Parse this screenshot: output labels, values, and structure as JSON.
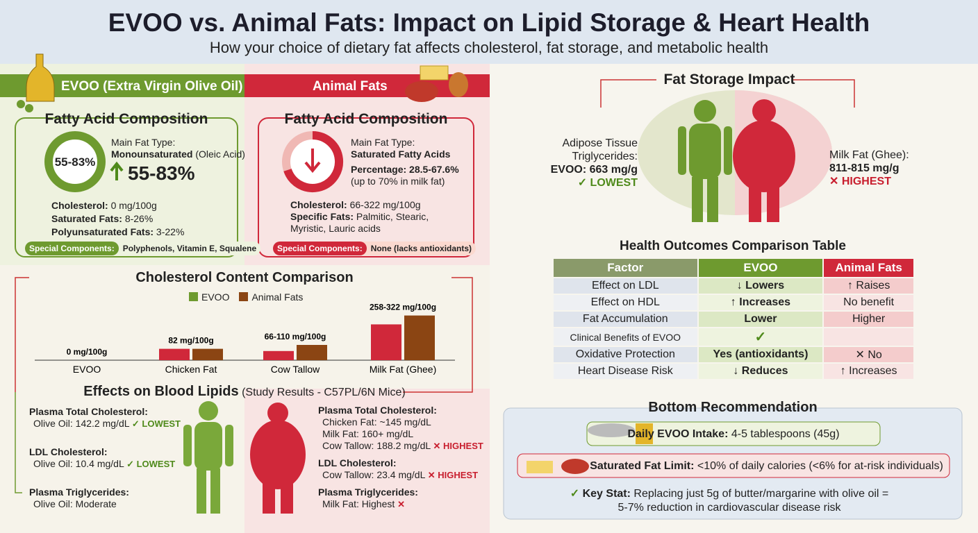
{
  "header": {
    "title": "EVOO vs. Animal Fats: Impact on Lipid Storage & Heart Health",
    "subtitle": "How your choice of dietary fat affects cholesterol, fat storage, and metabolic health"
  },
  "evoo": {
    "banner": "EVOO (Extra Virgin Olive Oil)",
    "heading": "Fatty Acid Composition",
    "ring_label": "55-83%",
    "main_type_label": "Main Fat Type:",
    "main_type": "Monounsaturated",
    "main_type_note": "(Oleic Acid)",
    "big_stat": "55-83%",
    "facts": [
      {
        "label": "Cholesterol:",
        "value": "0 mg/100g"
      },
      {
        "label": "Saturated Fats:",
        "value": "8-26%"
      },
      {
        "label": "Polyunsaturated Fats:",
        "value": "3-22%"
      }
    ],
    "special_label": "Special Components:",
    "special_value": "Polyphenols, Vitamin E, Squalene"
  },
  "animal": {
    "banner": "Animal Fats",
    "heading": "Fatty Acid Composition",
    "main_type_label": "Main Fat Type:",
    "main_type": "Saturated Fatty Acids",
    "percentage_label": "Percentage:",
    "percentage": "28.5-67.6%",
    "percentage_note": "(up to 70% in milk fat)",
    "facts": [
      {
        "label": "Cholesterol:",
        "value": "66-322 mg/100g"
      },
      {
        "label": "Specific Fats:",
        "value": "Palmitic, Stearic, Myristic, Lauric acids"
      }
    ],
    "special_label": "Special Components:",
    "special_value": "None (lacks antioxidants)"
  },
  "cholesterol_chart": {
    "title": "Cholesterol Content Comparison",
    "legend": [
      {
        "name": "EVOO",
        "color": "#6e9a2f"
      },
      {
        "name": "Animal Fats",
        "color": "#8b4513"
      }
    ],
    "categories": [
      "EVOO",
      "Chicken Fat",
      "Cow Tallow",
      "Milk Fat (Ghee)"
    ],
    "value_labels": [
      "0 mg/100g",
      "82 mg/100g",
      "66-110 mg/100g",
      "258-322 mg/100g"
    ],
    "low": [
      0,
      82,
      66,
      258
    ],
    "high": [
      0,
      82,
      110,
      322
    ],
    "low_color": "#d0283a",
    "high_color": "#8b4513",
    "ylim": [
      0,
      330
    ]
  },
  "blood_lipids": {
    "title": "Effects on Blood Lipids",
    "subtitle": "(Study Results - C57PL/6N Mice)",
    "evoo": [
      {
        "label": "Plasma Total Cholesterol:",
        "lines": [
          {
            "text": "Olive Oil: 142.2 mg/dL",
            "tag": "✓ LOWEST"
          }
        ]
      },
      {
        "label": "LDL Cholesterol:",
        "lines": [
          {
            "text": "Olive Oil: 10.4 mg/dL",
            "tag": "✓ LOWEST"
          }
        ]
      },
      {
        "label": "Plasma Triglycerides:",
        "lines": [
          {
            "text": "Olive Oil: Moderate"
          }
        ]
      }
    ],
    "animal": [
      {
        "label": "Plasma Total Cholesterol:",
        "lines": [
          {
            "text": "Chicken Fat: ~145 mg/dL"
          },
          {
            "text": "Milk Fat: 160+ mg/dL"
          },
          {
            "text": "Cow Tallow: 188.2 mg/dL",
            "tag": "✕ HIGHEST"
          }
        ]
      },
      {
        "label": "LDL Cholesterol:",
        "lines": [
          {
            "text": "Cow Tallow: 23.4 mg/dL",
            "tag": "✕ HIGHEST"
          }
        ]
      },
      {
        "label": "Plasma Triglycerides:",
        "lines": [
          {
            "text": "Milk Fat: Highest",
            "tag": "✕"
          }
        ]
      }
    ]
  },
  "fat_storage": {
    "title": "Fat Storage Impact",
    "left_label": "Adipose Tissue Triglycerides:",
    "left_value": "EVOO: 663 mg/g",
    "left_tag": "✓ LOWEST",
    "right_label": "Milk Fat (Ghee):",
    "right_value": "811-815 mg/g",
    "right_tag": "✕ HIGHEST"
  },
  "table": {
    "title": "Health Outcomes Comparison Table",
    "header": [
      "Factor",
      "EVOO",
      "Animal Fats"
    ],
    "rows": [
      [
        "Effect on LDL",
        "↓ Lowers",
        "↑ Raises"
      ],
      [
        "Effect on HDL",
        "↑ Increases",
        "No benefit"
      ],
      [
        "Fat Accumulation",
        "Lower",
        "Higher"
      ],
      [
        "Clinical Benefits of EVOO",
        "✓",
        ""
      ],
      [
        "Oxidative Protection",
        "Yes (antioxidants)",
        "✕ No"
      ],
      [
        "Heart Disease Risk",
        "↓ Reduces",
        "↑ Increases"
      ]
    ]
  },
  "recommendation": {
    "title": "Bottom Recommendation",
    "intake_label": "Daily EVOO Intake:",
    "intake_value": "4-5 tablespoons (45g)",
    "limit_label": "Saturated Fat Limit:",
    "limit_value": "<10% of daily calories (<6% for at-risk individuals)",
    "key_label": "Key Stat:",
    "key_value": "Replacing just 5g of butter/margarine with olive oil = 5-7% reduction in cardiovascular disease risk"
  }
}
